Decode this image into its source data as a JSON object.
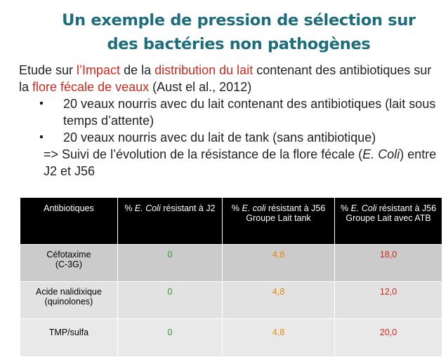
{
  "title": "Un exemple de pression de sélection sur des bactéries non pathogènes",
  "intro": [
    {
      "text": "Etude sur "
    },
    {
      "text": "l’Impact",
      "highlight": true
    },
    {
      "text": " de la "
    },
    {
      "text": "distribution du lait",
      "highlight": true
    },
    {
      "text": " contenant des antibiotiques sur la "
    },
    {
      "text": "flore fécale de veaux",
      "highlight": true
    },
    {
      "text": " (Aust el al., 2012)"
    }
  ],
  "bullets": [
    "20 veaux nourris avec du lait contenant des antibiotiques (lait sous temps d’attente)",
    "20 veaux nourris avec du lait de tank (sans antibiotique)"
  ],
  "conclusion": [
    {
      "text": "=> Suivi de l’évolution de la résistance de la flore fécale ("
    },
    {
      "text": "E. Coli",
      "italic": true
    },
    {
      "text": ") entre J2 et J56"
    }
  ],
  "table": {
    "header": [
      [
        {
          "text": "Antibiotiques"
        }
      ],
      [
        {
          "text": "% "
        },
        {
          "text": "E. Coli",
          "italic": true
        },
        {
          "text": " résistant à J2"
        }
      ],
      [
        {
          "text": "% "
        },
        {
          "text": "E. coli",
          "italic": true
        },
        {
          "text": " résistant à J56 Groupe Lait tank"
        }
      ],
      [
        {
          "text": "% "
        },
        {
          "text": "E. Coli",
          "italic": true
        },
        {
          "text": " résistant à J56 Groupe Lait avec ATB"
        }
      ]
    ],
    "column_colors": [
      "#000000",
      "#2e9b2e",
      "#e58a0c",
      "#d8261b"
    ],
    "rows": [
      {
        "antibiotic": "Céfotaxime",
        "family": "(C-3G)",
        "values": [
          "0",
          "4,8",
          "18,0"
        ]
      },
      {
        "antibiotic": "Acide nalidixique",
        "family": "(quinolones)",
        "values": [
          "0",
          "4,8",
          "12,0"
        ]
      },
      {
        "antibiotic": "TMP/sulfa",
        "values": [
          "0",
          "4,8",
          "20,0"
        ]
      }
    ]
  }
}
